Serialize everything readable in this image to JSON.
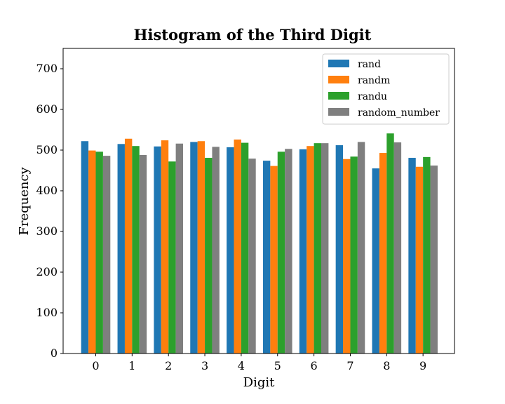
{
  "chart_data": {
    "type": "bar",
    "title": "Histogram of the Third Digit",
    "xlabel": "Digit",
    "ylabel": "Frequency",
    "categories": [
      "0",
      "1",
      "2",
      "3",
      "4",
      "5",
      "6",
      "7",
      "8",
      "9"
    ],
    "ylim": [
      0,
      750
    ],
    "yticks": [
      0,
      100,
      200,
      300,
      400,
      500,
      600,
      700
    ],
    "grid": false,
    "legend_position": "top-right",
    "series": [
      {
        "name": "rand",
        "color": "#1f77b4",
        "values": [
          522,
          515,
          509,
          520,
          507,
          474,
          502,
          512,
          455,
          481
        ]
      },
      {
        "name": "randm",
        "color": "#ff7f0e",
        "values": [
          499,
          528,
          524,
          522,
          526,
          461,
          510,
          478,
          493,
          459
        ]
      },
      {
        "name": "randu",
        "color": "#2ca02c",
        "values": [
          496,
          510,
          472,
          481,
          518,
          496,
          517,
          484,
          541,
          483
        ]
      },
      {
        "name": "random_number",
        "color": "#7f7f7f",
        "values": [
          486,
          488,
          516,
          508,
          479,
          503,
          517,
          520,
          519,
          462
        ]
      }
    ]
  }
}
